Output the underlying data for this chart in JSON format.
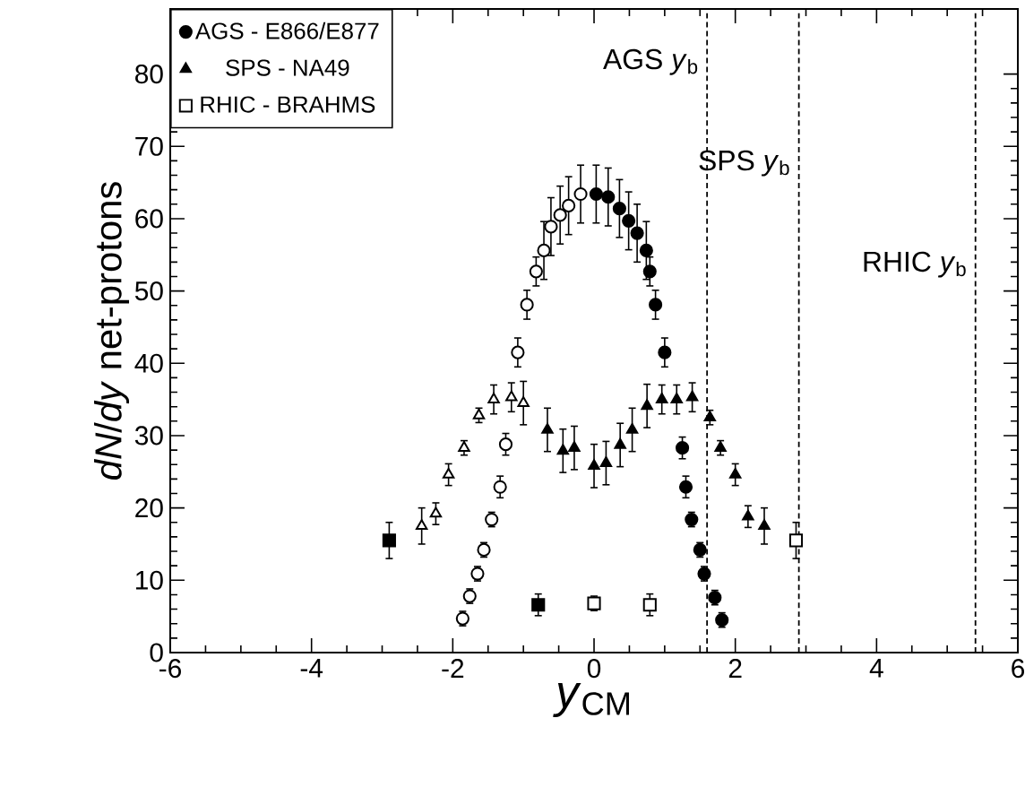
{
  "chart_data": {
    "type": "scatter",
    "xlabel": "*y*$_{CM}$",
    "ylabel": "*dN*/*dy* net-protons",
    "xlim": [
      -6,
      6
    ],
    "ylim": [
      0,
      89
    ],
    "xticks": [
      -6,
      -4,
      -2,
      0,
      2,
      4,
      6
    ],
    "yticks": [
      0,
      10,
      20,
      30,
      40,
      50,
      60,
      70,
      80
    ],
    "legend": "top left",
    "series": [
      {
        "name": "AGS - E866/E877",
        "color": "#000000",
        "marker": "circle",
        "x": [
          0.03,
          0.2,
          0.36,
          0.49,
          0.61,
          0.74,
          0.79,
          0.87,
          1.0,
          1.25,
          1.3,
          1.38,
          1.5,
          1.56,
          1.71,
          1.81
        ],
        "values": [
          63.4,
          63,
          61.4,
          59.7,
          58,
          55.6,
          52.7,
          48.1,
          41.5,
          28.3,
          22.9,
          18.4,
          14.2,
          10.9,
          7.6,
          4.5
        ],
        "errors": [
          4,
          4,
          4,
          4,
          4,
          4,
          2,
          2,
          2,
          1.5,
          1.5,
          1,
          1,
          1,
          1,
          1
        ]
      },
      {
        "color": "#ffffff",
        "marker": "circle",
        "x": [
          -0.19,
          -0.36,
          -0.48,
          -0.61,
          -0.71,
          -0.82,
          -0.95,
          -1.08,
          -1.25,
          -1.33,
          -1.45,
          -1.56,
          -1.65,
          -1.76,
          -1.86
        ],
        "values": [
          63.4,
          61.8,
          60.5,
          58.9,
          55.6,
          52.7,
          48.1,
          41.5,
          28.8,
          22.9,
          18.4,
          14.2,
          10.9,
          7.8,
          4.7
        ],
        "errors": [
          4,
          4,
          4,
          4,
          4,
          2,
          2,
          2,
          1.5,
          1.5,
          1,
          1,
          1,
          1,
          1
        ]
      },
      {
        "name": "SPS - NA49",
        "color": "#000000",
        "marker": "triangle",
        "x": [
          -0.66,
          -0.44,
          -0.28,
          0,
          0.17,
          0.37,
          0.54,
          0.75,
          0.96,
          1.17,
          1.39,
          1.64,
          1.79,
          2.0,
          2.18,
          2.41
        ],
        "values": [
          30.8,
          27.9,
          28.3,
          25.8,
          26.2,
          28.7,
          30.8,
          34.1,
          35,
          35,
          35.3,
          32.5,
          28.3,
          24.6,
          18.8,
          17.5
        ],
        "errors": [
          3,
          3,
          3,
          3,
          3,
          3,
          3,
          3,
          2,
          2,
          2,
          1,
          1,
          1.5,
          1.5,
          2.5
        ]
      },
      {
        "color": "#ffffff",
        "marker": "triangle",
        "x": [
          -1.0,
          -1.17,
          -1.42,
          -1.63,
          -1.84,
          -2.06,
          -2.24,
          -2.44
        ],
        "values": [
          34.5,
          35.3,
          35,
          32.8,
          28.3,
          24.6,
          19.2,
          17.5
        ],
        "errors": [
          3,
          2,
          2,
          1,
          1,
          1.5,
          1.5,
          2.5
        ]
      },
      {
        "name": "RHIC - BRAHMS",
        "color": "#ffffff",
        "marker": "square",
        "x": [
          0,
          0.79,
          2.86
        ],
        "values": [
          6.8,
          6.6,
          15.5
        ],
        "errors": [
          1,
          1.5,
          2.5
        ]
      },
      {
        "color": "#000000",
        "marker": "square",
        "x": [
          -0.79,
          -2.9
        ],
        "values": [
          6.6,
          15.5
        ],
        "errors": [
          1.5,
          2.5
        ]
      }
    ],
    "ref_lines": [
      {
        "axis": "x",
        "value": 1.6,
        "label": "AGS *y*$_{b}$",
        "line_style": "dashed",
        "color": "#000000"
      },
      {
        "axis": "x",
        "value": 2.9,
        "label": "SPS *y*$_{b}$",
        "line_style": "dashed",
        "color": "#000000"
      },
      {
        "axis": "x",
        "value": 5.4,
        "label": "RHIC *y*$_{b}$",
        "line_style": "dashed",
        "color": "#000000"
      }
    ]
  }
}
